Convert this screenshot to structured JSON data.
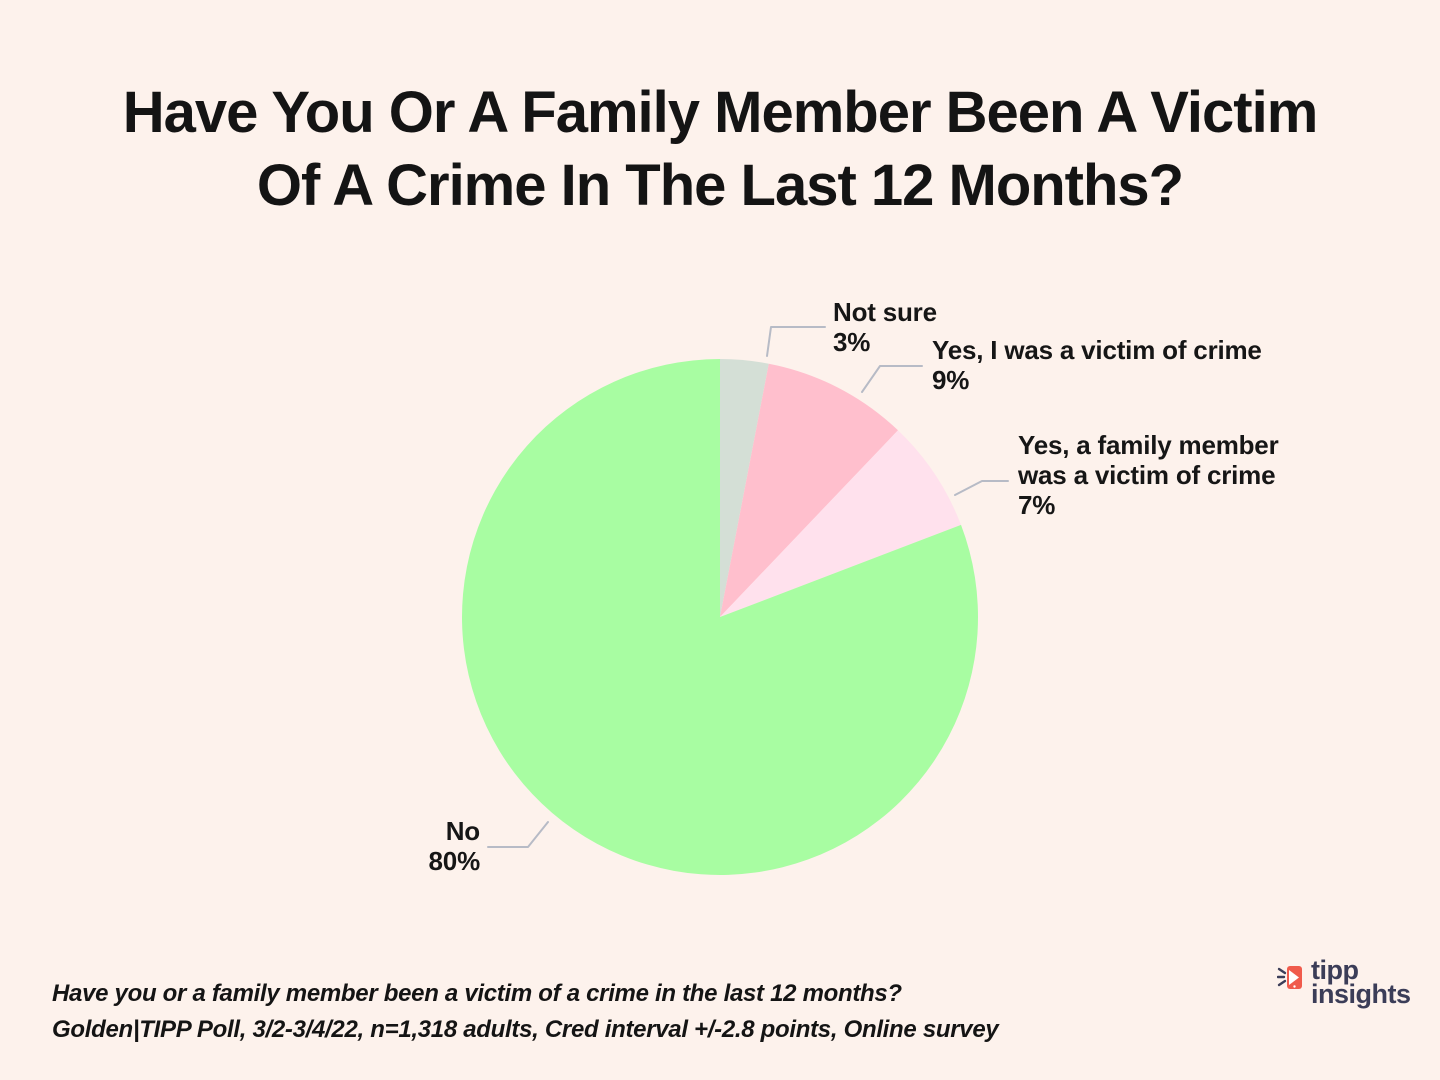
{
  "title": {
    "line1": "Have You Or A Family Member Been A Victim",
    "line2": "Of A Crime In The Last 12 Months?",
    "full": "Have You Or A Family Member Been A Victim Of A Crime In The Last 12 Months?"
  },
  "chart_data": {
    "type": "pie",
    "title": "Have You Or A Family Member Been A Victim Of A Crime In The Last 12 Months?",
    "labels": [
      "Not sure",
      "Yes, I was a victim of crime",
      "Yes, a family member was a victim of crime",
      "No"
    ],
    "values": [
      3,
      9,
      7,
      80
    ],
    "unit": "%",
    "colors": [
      "#d4dfd6",
      "#ffbfcd",
      "#ffe1ed",
      "#a8fda2"
    ],
    "start_angle_deg": 0,
    "direction": "clockwise",
    "legend_position": "callout-labels"
  },
  "callouts": [
    {
      "lines": [
        "Not sure",
        "3%"
      ]
    },
    {
      "lines": [
        "Yes, I was a victim of crime",
        "9%"
      ]
    },
    {
      "lines": [
        "Yes, a family member",
        "was a victim of crime",
        "7%"
      ]
    },
    {
      "lines": [
        "No",
        "80%"
      ]
    }
  ],
  "footnote": {
    "line1": "Have you or a family member been a victim of a crime in the last 12 months?",
    "line2": "Golden|TIPP Poll, 3/2-3/4/22, n=1,318 adults, Cred interval +/-2.8 points, Online survey"
  },
  "logo": {
    "line1": "tipp",
    "line2": "insights",
    "text_color": "#3b3d58",
    "icon_color": "#f05b4c"
  },
  "style_colors": {
    "background": "#fdf2ec",
    "text": "#141414",
    "leader_line": "#b7bbc6"
  }
}
